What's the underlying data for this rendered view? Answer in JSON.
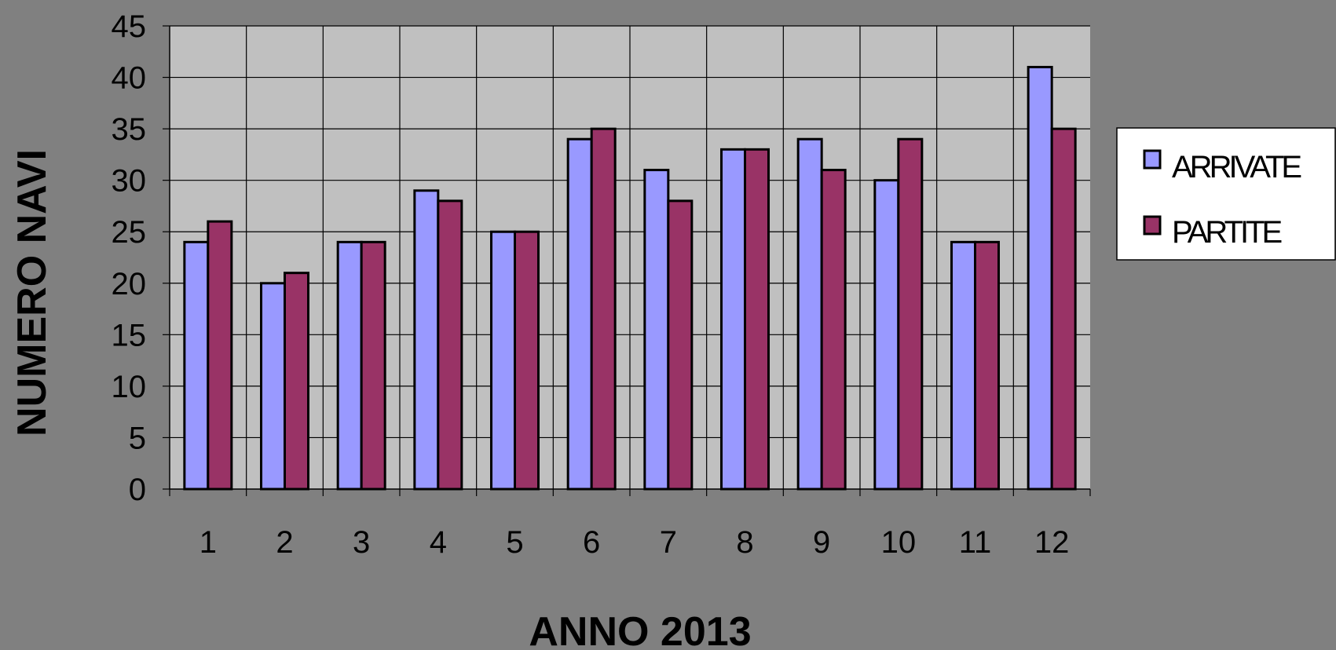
{
  "chart_data": {
    "type": "bar",
    "categories": [
      "1",
      "2",
      "3",
      "4",
      "5",
      "6",
      "7",
      "8",
      "9",
      "10",
      "11",
      "12"
    ],
    "series": [
      {
        "name": "ARRIVATE",
        "color": "#9999ff",
        "values": [
          24,
          20,
          24,
          29,
          25,
          34,
          31,
          33,
          34,
          30,
          24,
          41
        ]
      },
      {
        "name": "PARTITE",
        "color": "#993366",
        "values": [
          26,
          21,
          24,
          28,
          25,
          35,
          28,
          33,
          31,
          34,
          24,
          35
        ]
      }
    ],
    "title": "",
    "xlabel": "ANNO 2013",
    "ylabel": "NUMERO NAVI",
    "ylim": [
      0,
      45
    ],
    "yticks": [
      "0",
      "5",
      "10",
      "15",
      "20",
      "25",
      "30",
      "35",
      "40",
      "45"
    ],
    "grid": true,
    "legend": "right",
    "plot_background": "#c0c0c0",
    "page_background": "#808080"
  }
}
